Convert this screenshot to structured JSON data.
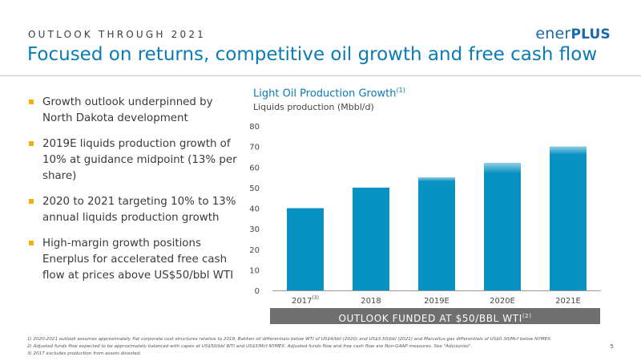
{
  "header": {
    "eyebrow": "OUTLOOK THROUGH 2021",
    "title": "Focused on returns, competitive oil growth and free cash flow",
    "logo_part1": "ener",
    "logo_part2": "PLUS"
  },
  "bullets": [
    "Growth outlook underpinned by North Dakota development",
    "2019E liquids production growth of 10% at guidance midpoint (13% per share)",
    "2020 to 2021 targeting 10% to 13% annual liquids production growth",
    "High-margin growth positions Enerplus for accelerated free cash flow at prices above US$50/bbl WTI"
  ],
  "chart_heading": {
    "title": "Light Oil Production Growth",
    "title_note": "(1)",
    "subtitle": "Liquids production (Mbbl/d)"
  },
  "chart_data": {
    "type": "bar",
    "title": "Light Oil Production Growth",
    "ylabel": "Liquids production (Mbbl/d)",
    "categories": [
      "2017",
      "2018",
      "2019E",
      "2020E",
      "2021E"
    ],
    "category_notes": [
      "(3)",
      "",
      "",
      "",
      ""
    ],
    "values": [
      40,
      50,
      55,
      62,
      70
    ],
    "range_low": [
      null,
      null,
      53,
      57,
      66
    ],
    "ylim": [
      0,
      80
    ],
    "yticks": [
      0,
      10,
      20,
      30,
      40,
      50,
      60,
      70,
      80
    ],
    "grid": false,
    "legend": "none",
    "bar_color": "#0792c3"
  },
  "banner": {
    "text": "OUTLOOK FUNDED AT $50/BBL WTI",
    "note": "(2)"
  },
  "footnotes": [
    "1)   2020-2021 outlook assumes approximately flat corporate cost structures relative to 2019, Bakken oil differentials below WTI of US$4/bbl (2020) and US$3.50/bbl (2021) and Marcellus gas differentials of US$0.30/Mcf below NYMEX.",
    "2)   Adjusted funds flow expected to be approximately balanced with capex at US$50/bbl WTI and US$3/Mcf NYMEX. Adjusted funds flow and free cash flow are Non-GAAP measures. See \"Advisories\".",
    "3)   2017 excludes production from assets divested."
  ],
  "page_number": "5",
  "colors": {
    "accent": "#0a7bb5",
    "bullet": "#f1b10b",
    "banner": "#6f6f6f"
  }
}
